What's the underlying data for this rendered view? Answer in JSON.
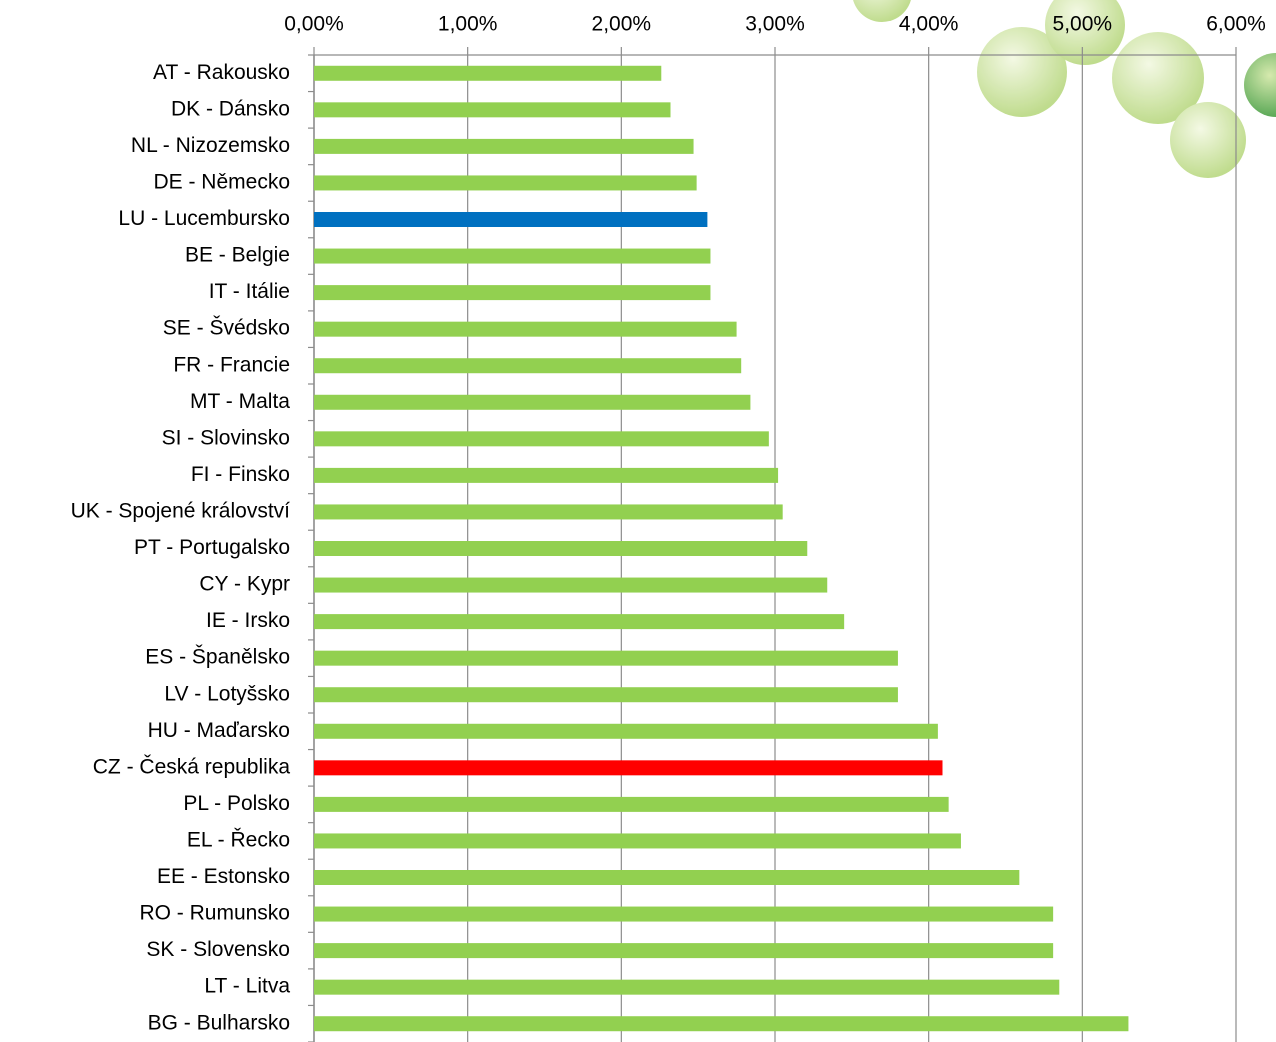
{
  "chart_data": {
    "type": "barh",
    "categories": [
      "AT - Rakousko",
      "DK - Dánsko",
      "NL - Nizozemsko",
      "DE - Německo",
      "LU - Lucembursko",
      "BE - Belgie",
      "IT - Itálie",
      "SE - Švédsko",
      "FR - Francie",
      "MT - Malta",
      "SI - Slovinsko",
      "FI - Finsko",
      "UK - Spojené království",
      "PT - Portugalsko",
      "CY - Kypr",
      "IE - Irsko",
      "ES - Španělsko",
      "LV - Lotyšsko",
      "HU - Maďarsko",
      "CZ - Česká republika",
      "PL - Polsko",
      "EL - Řecko",
      "EE - Estonsko",
      "RO - Rumunsko",
      "SK - Slovensko",
      "LT - Litva",
      "BG - Bulharsko"
    ],
    "values": [
      2.26,
      2.32,
      2.47,
      2.49,
      2.56,
      2.58,
      2.58,
      2.75,
      2.78,
      2.84,
      2.96,
      3.02,
      3.05,
      3.21,
      3.34,
      3.45,
      3.8,
      3.8,
      4.06,
      4.09,
      4.13,
      4.21,
      4.59,
      4.81,
      4.81,
      4.85,
      5.3
    ],
    "colors": [
      "#92d050",
      "#92d050",
      "#92d050",
      "#92d050",
      "#0070c0",
      "#92d050",
      "#92d050",
      "#92d050",
      "#92d050",
      "#92d050",
      "#92d050",
      "#92d050",
      "#92d050",
      "#92d050",
      "#92d050",
      "#92d050",
      "#92d050",
      "#92d050",
      "#92d050",
      "#ff0000",
      "#92d050",
      "#92d050",
      "#92d050",
      "#92d050",
      "#92d050",
      "#92d050",
      "#92d050"
    ],
    "xlim": [
      0,
      6
    ],
    "xticks": [
      {
        "value": 0,
        "label": "0,00%"
      },
      {
        "value": 1,
        "label": "1,00%"
      },
      {
        "value": 2,
        "label": "2,00%"
      },
      {
        "value": 3,
        "label": "3,00%"
      },
      {
        "value": 4,
        "label": "4,00%"
      },
      {
        "value": 5,
        "label": "5,00%"
      },
      {
        "value": 6,
        "label": "6,00%"
      }
    ],
    "grid": true
  }
}
